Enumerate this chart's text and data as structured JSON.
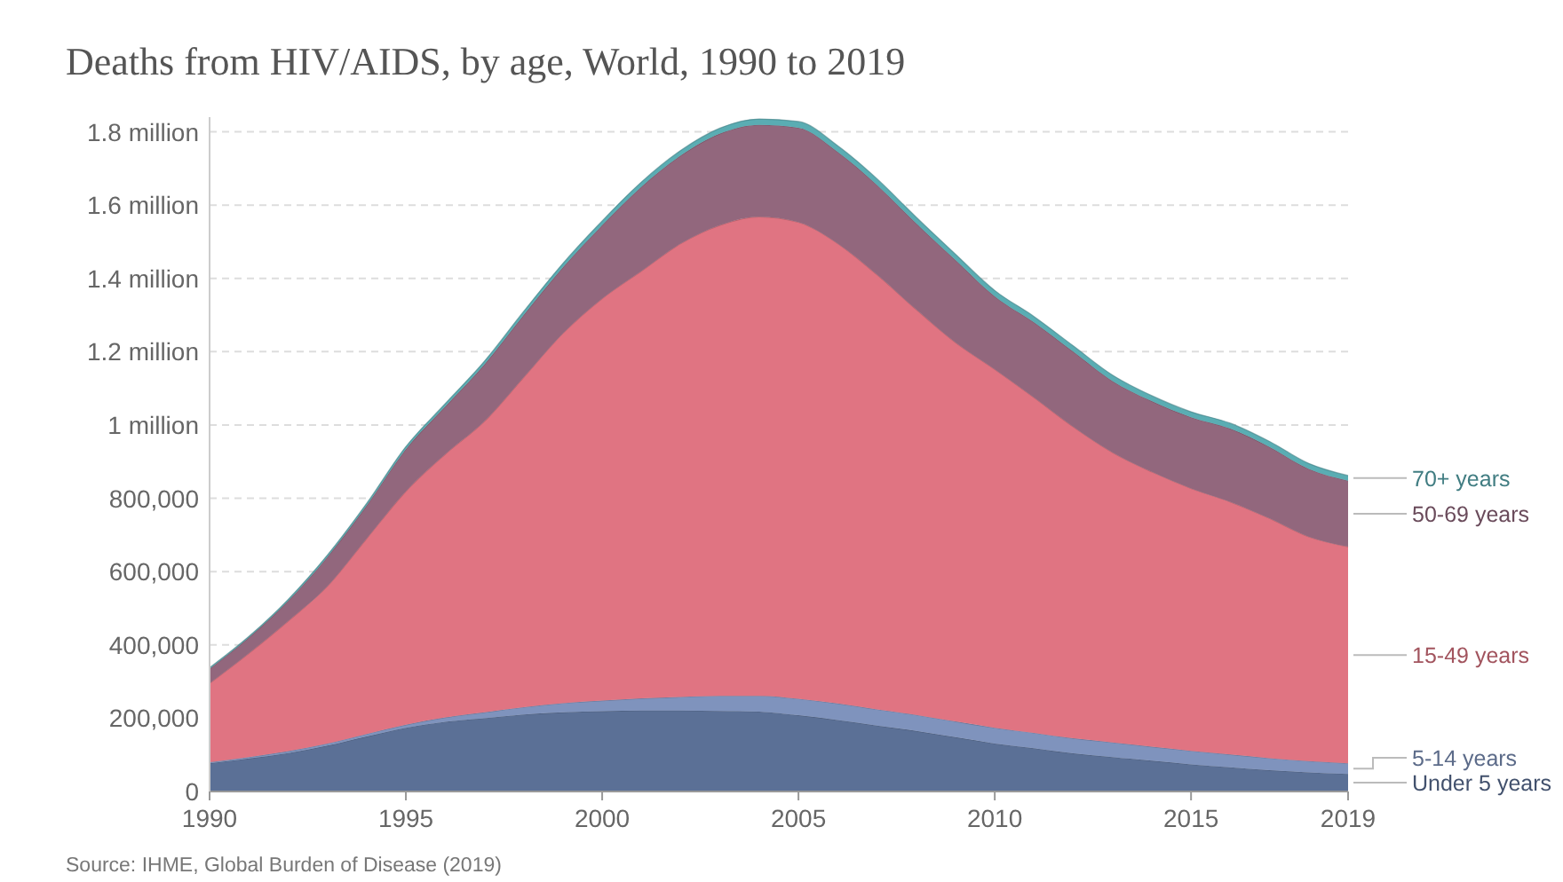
{
  "chart_data": {
    "type": "area",
    "stacked": true,
    "title": "Deaths from HIV/AIDS, by age, World, 1990 to 2019",
    "x": [
      1990,
      1991,
      1992,
      1993,
      1994,
      1995,
      1996,
      1997,
      1998,
      1999,
      2000,
      2001,
      2002,
      2003,
      2004,
      2005,
      2006,
      2007,
      2008,
      2009,
      2010,
      2011,
      2012,
      2013,
      2014,
      2015,
      2016,
      2017,
      2018,
      2019
    ],
    "series": [
      {
        "name": "Under 5 years",
        "color": "#5b7096",
        "values": [
          77000,
          90000,
          105000,
          125000,
          150000,
          174000,
          190000,
          200000,
          210000,
          216000,
          219000,
          221000,
          221000,
          220000,
          218000,
          208000,
          195000,
          180000,
          165000,
          148000,
          131000,
          118000,
          104000,
          94000,
          84000,
          74000,
          66000,
          58000,
          52000,
          48000
        ]
      },
      {
        "name": "5-14 years",
        "color": "#7f93bd",
        "values": [
          3000,
          4000,
          5000,
          6000,
          7000,
          8000,
          12000,
          16000,
          20000,
          25000,
          29000,
          33000,
          37000,
          41000,
          43000,
          45000,
          45000,
          44000,
          44000,
          43000,
          43000,
          42000,
          41000,
          40000,
          38000,
          37000,
          35000,
          33000,
          31000,
          29000
        ]
      },
      {
        "name": "15-49 years",
        "color": "#e07482",
        "values": [
          215000,
          283000,
          355000,
          429000,
          533000,
          637000,
          718000,
          794000,
          900000,
          1009000,
          1097000,
          1166000,
          1237000,
          1284000,
          1307000,
          1300000,
          1255000,
          1186000,
          1106000,
          1034000,
          978000,
          915000,
          850000,
          791000,
          750000,
          716000,
          689000,
          654000,
          612000,
          591000
        ]
      },
      {
        "name": "50-69 years",
        "color": "#92677d",
        "values": [
          40000,
          43000,
          55000,
          80000,
          90000,
          115000,
          130000,
          155000,
          170000,
          180000,
          200000,
          230000,
          240000,
          250000,
          251000,
          258000,
          250000,
          245000,
          235000,
          225000,
          199000,
          205000,
          205000,
          195000,
          193000,
          194000,
          200000,
          195000,
          185000,
          180000
        ]
      },
      {
        "name": "70+ years",
        "color": "#5aadb3",
        "values": [
          3000,
          3000,
          4000,
          5000,
          6000,
          7000,
          8000,
          9000,
          10000,
          11000,
          12000,
          13000,
          14000,
          15000,
          16000,
          17000,
          17000,
          17000,
          17000,
          16000,
          16000,
          16000,
          16000,
          16000,
          15000,
          15000,
          15000,
          15000,
          15000,
          14000
        ]
      }
    ],
    "xlim": [
      1990,
      2019
    ],
    "xticks": [
      1990,
      1995,
      2000,
      2005,
      2010,
      2015,
      2019
    ],
    "ylim": [
      0,
      1840000
    ],
    "yticks": [
      0,
      {
        "value": 200000,
        "label": "200,000"
      },
      {
        "value": 400000,
        "label": "400,000"
      },
      {
        "value": 600000,
        "label": "600,000"
      },
      {
        "value": 800000,
        "label": "800,000"
      },
      {
        "value": 1000000,
        "label": "1 million"
      },
      {
        "value": 1200000,
        "label": "1.2 million"
      },
      {
        "value": 1400000,
        "label": "1.4 million"
      },
      {
        "value": 1600000,
        "label": "1.6 million"
      },
      {
        "value": 1800000,
        "label": "1.8 million"
      }
    ],
    "grid": "y",
    "legend": "right",
    "annotations": [
      "Source: IHME, Global Burden of Disease (2019)"
    ]
  }
}
